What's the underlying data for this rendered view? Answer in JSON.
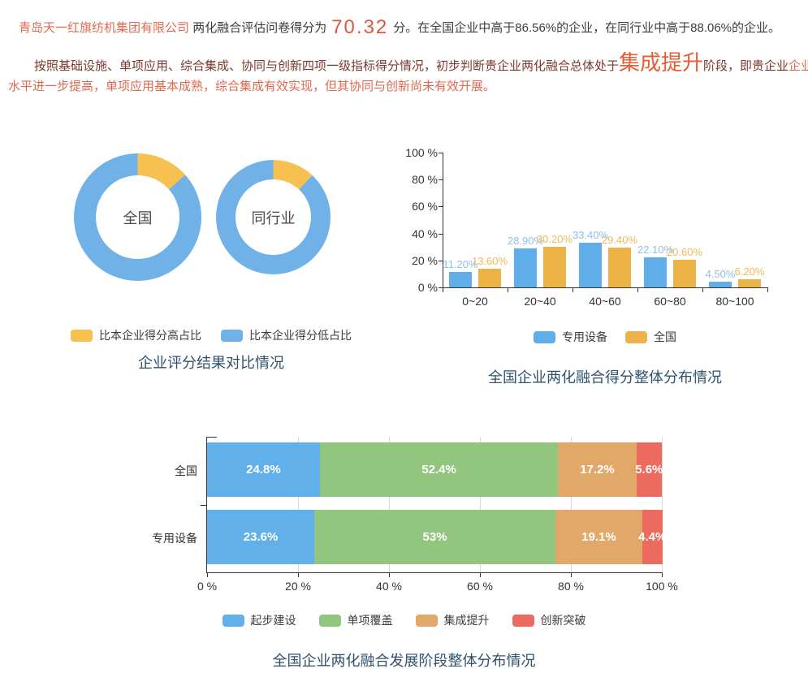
{
  "intro": {
    "company": "青岛天一红旗纺机集团有限公司",
    "lead": "两化融合评估问卷得分为",
    "score": "70.32",
    "tail": "分。在全国企业中高于86.56%的企业，在同行业中高于88.06%的企业。"
  },
  "assessment": {
    "line1_lead": "按照基础设施、单项应用、综合集成、协同与创新四项一级指标得分情况，初步判断贵企业两化融合总体处于",
    "stage": "集成提升",
    "line1_mid": "阶段，即贵企业",
    "line1_tail": "企业基础建设",
    "line2": "水平进一步提高，单项应用基本成熟，综合集成有效实现，但其协同与创新尚未有效开展。"
  },
  "colors": {
    "company_orange": "#e06a50",
    "score_red": "#e25443",
    "stage_orange": "#e85c33",
    "paragraph_maroon": "#7a392a",
    "paragraph_lightred": "#dd6a50",
    "title_navy": "#2f516d",
    "chart_blue": "#5fade9",
    "chart_yellow": "#edb348",
    "chart_green": "#92c57e",
    "chart_tan": "#e1a86a",
    "chart_red": "#ec6b5e"
  },
  "chart_data": [
    {
      "type": "pie",
      "subtype": "donut-pair",
      "title": "企业评分结果对比情况",
      "legend": [
        {
          "label": "比本企业得分高占比",
          "color": "#f7c152"
        },
        {
          "label": "比本企业得分低占比",
          "color": "#70b2e8"
        }
      ],
      "donuts": [
        {
          "label": "全国",
          "higher_pct": 13.44,
          "lower_pct": 86.56
        },
        {
          "label": "同行业",
          "higher_pct": 11.94,
          "lower_pct": 88.06
        }
      ]
    },
    {
      "type": "bar",
      "title": "全国企业两化融合得分整体分布情况",
      "categories": [
        "0~20",
        "20~40",
        "40~60",
        "60~80",
        "80~100"
      ],
      "series": [
        {
          "name": "专用设备",
          "color": "#5fade9",
          "label_color": "#8fc0e8",
          "values": [
            11.2,
            28.9,
            33.4,
            22.1,
            4.5
          ],
          "labels": [
            "11.20%",
            "28.90%",
            "33.40%",
            "22.10%",
            "4.50%"
          ]
        },
        {
          "name": "全国",
          "color": "#edb348",
          "label_color": "#f0ba58",
          "values": [
            13.6,
            30.2,
            29.4,
            20.6,
            6.2
          ],
          "labels": [
            "13.60%",
            "30.20%",
            "29.40%",
            "20.60%",
            "6.20%"
          ]
        }
      ],
      "y_ticks": [
        "0 %",
        "20 %",
        "40 %",
        "60 %",
        "80 %",
        "100 %"
      ],
      "ylim": [
        0,
        100
      ],
      "grid": false,
      "legend_position": "bottom"
    },
    {
      "type": "bar",
      "subtype": "horizontal-stacked",
      "title": "全国企业两化融合发展阶段整体分布情况",
      "segments": [
        {
          "name": "起步建设",
          "color": "#62b0e9"
        },
        {
          "name": "单项覆盖",
          "color": "#92c57e"
        },
        {
          "name": "集成提升",
          "color": "#e1a86a"
        },
        {
          "name": "创新突破",
          "color": "#ec6b5e"
        }
      ],
      "rows": [
        {
          "label": "全国",
          "values": [
            24.8,
            52.4,
            17.2,
            5.6
          ],
          "display": [
            "24.8%",
            "52.4%",
            "17.2%",
            "5.6%"
          ]
        },
        {
          "label": "专用设备",
          "values": [
            23.6,
            53,
            19.1,
            4.4
          ],
          "display": [
            "23.6%",
            "53%",
            "19.1%",
            "4.4%"
          ]
        }
      ],
      "x_ticks": [
        "0 %",
        "20 %",
        "40 %",
        "60 %",
        "80 %",
        "100 %"
      ],
      "xlim": [
        0,
        100
      ],
      "grid": true,
      "legend_position": "bottom"
    }
  ]
}
